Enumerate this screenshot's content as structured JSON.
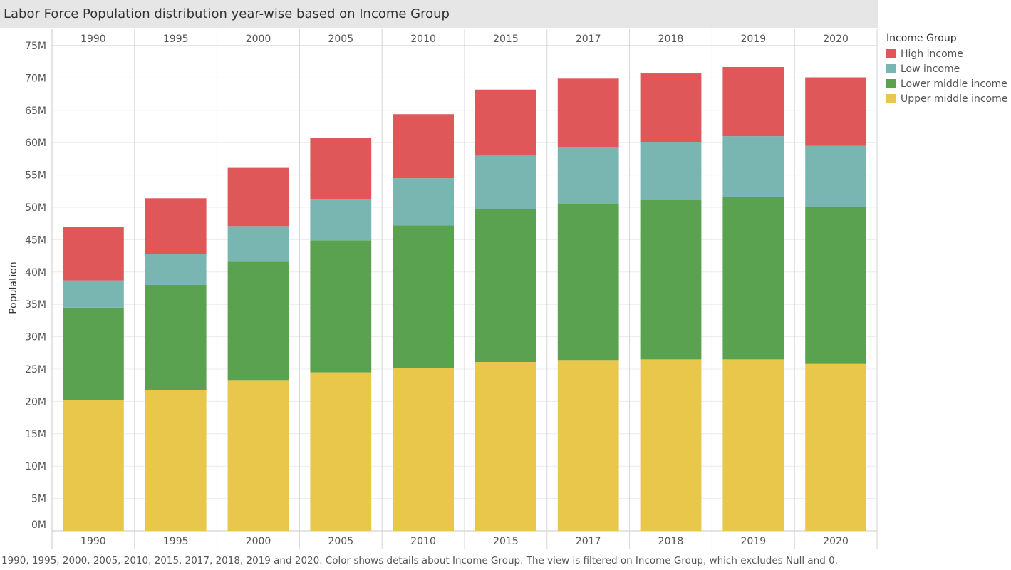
{
  "title": "Labor Force Population distribution year-wise based on Income Group",
  "footnote": "1990, 1995, 2000, 2005, 2010, 2015, 2017, 2018, 2019 and 2020.  Color shows details about Income Group. The view is filtered on Income Group, which excludes Null and 0.",
  "legend": {
    "title": "Income Group",
    "items": [
      {
        "label": "High income",
        "color": "#e05759"
      },
      {
        "label": "Low income",
        "color": "#79b5b1"
      },
      {
        "label": "Lower middle income",
        "color": "#5aa150"
      },
      {
        "label": "Upper middle income",
        "color": "#e9c74b"
      }
    ]
  },
  "chart_data": {
    "type": "bar",
    "stacked": true,
    "categories": [
      "1990",
      "1995",
      "2000",
      "2005",
      "2010",
      "2015",
      "2017",
      "2018",
      "2019",
      "2020"
    ],
    "ylabel": "Population",
    "ylim": [
      0,
      75000000
    ],
    "yticks": [
      0,
      5000000,
      10000000,
      15000000,
      20000000,
      25000000,
      30000000,
      35000000,
      40000000,
      45000000,
      50000000,
      55000000,
      60000000,
      65000000,
      70000000,
      75000000
    ],
    "ytick_labels": [
      "0M",
      "5M",
      "10M",
      "15M",
      "20M",
      "25M",
      "30M",
      "35M",
      "40M",
      "45M",
      "50M",
      "55M",
      "60M",
      "65M",
      "70M",
      "75M"
    ],
    "grid": true,
    "legend_position": "right",
    "series": [
      {
        "name": "Upper middle income",
        "color": "#e9c74b",
        "values": [
          20200000,
          21700000,
          23200000,
          24500000,
          25200000,
          26100000,
          26400000,
          26500000,
          26500000,
          25800000
        ]
      },
      {
        "name": "Lower middle income",
        "color": "#5aa150",
        "values": [
          14300000,
          16300000,
          18400000,
          20400000,
          22000000,
          23600000,
          24100000,
          24600000,
          25100000,
          24300000
        ]
      },
      {
        "name": "Low income",
        "color": "#79b5b1",
        "values": [
          4200000,
          4800000,
          5500000,
          6300000,
          7300000,
          8300000,
          8800000,
          9000000,
          9400000,
          9400000
        ]
      },
      {
        "name": "High income",
        "color": "#e05759",
        "values": [
          8300000,
          8600000,
          9000000,
          9500000,
          9900000,
          10200000,
          10600000,
          10600000,
          10700000,
          10600000
        ]
      }
    ]
  }
}
